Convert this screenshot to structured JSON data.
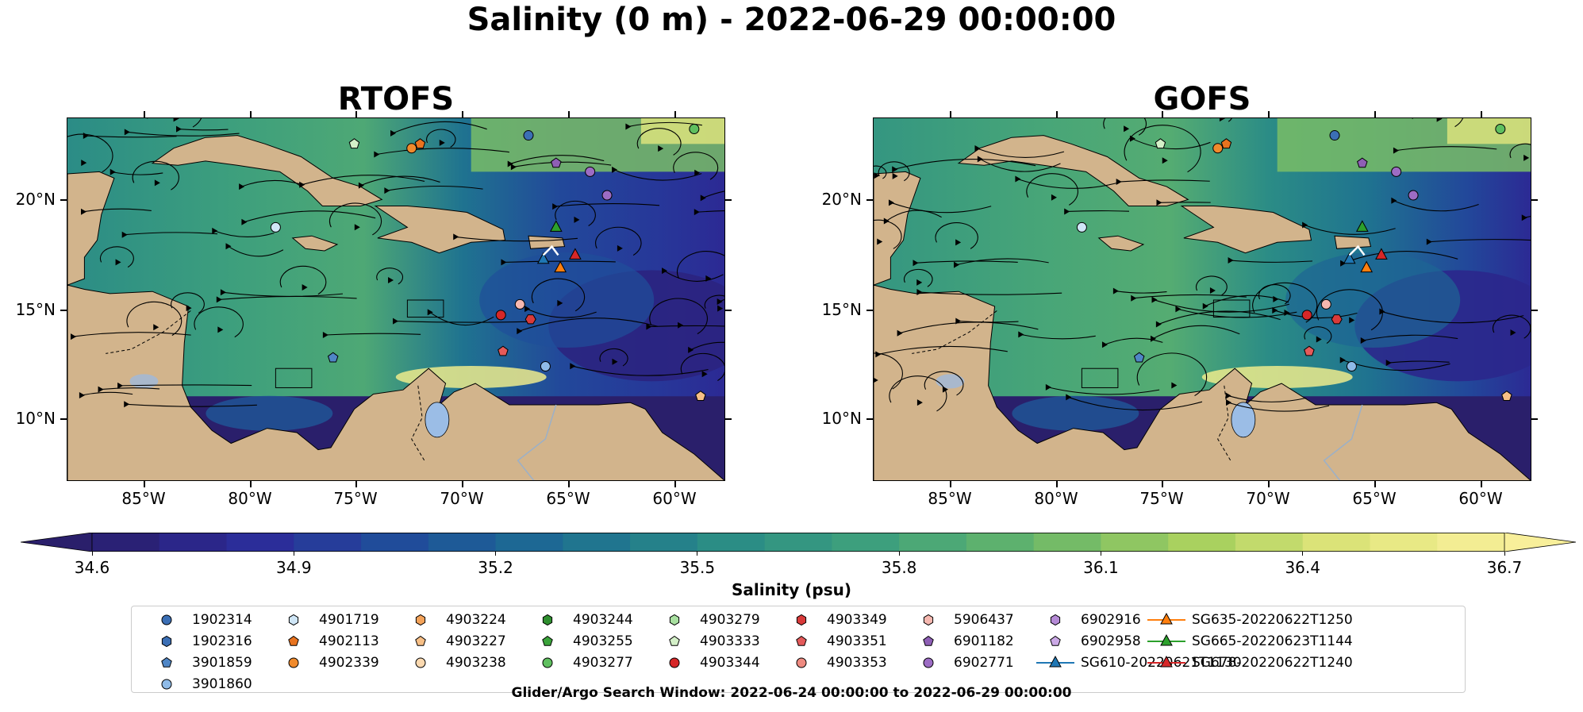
{
  "figure": {
    "title": "Salinity (0 m) - 2022-06-29 00:00:00",
    "panels": [
      {
        "title": "RTOFS"
      },
      {
        "title": "GOFS"
      }
    ],
    "lat_labels": [
      "20°N",
      "15°N",
      "10°N"
    ],
    "lon_labels": [
      "85°W",
      "80°W",
      "75°W",
      "70°W",
      "65°W",
      "60°W"
    ],
    "colors": {
      "land": "#d2b48c",
      "ocean_low": "#2a1f6b",
      "ocean_high": "#f8ef9a",
      "lake": "#9bbde6"
    }
  },
  "colorbar": {
    "label": "Salinity (psu)",
    "ticks": [
      "34.6",
      "34.9",
      "35.2",
      "35.5",
      "35.8",
      "36.1",
      "36.4",
      "36.7"
    ],
    "min": 34.6,
    "max": 36.7
  },
  "legend": {
    "caption": "Glider/Argo Search Window: 2022-06-24 00:00:00 to 2022-06-29 00:00:00",
    "items": [
      {
        "label": "1902314",
        "marker": "circle",
        "color": "#3b6fb5"
      },
      {
        "label": "1902316",
        "marker": "hexagon",
        "color": "#3b6fb5"
      },
      {
        "label": "3901859",
        "marker": "pentagon",
        "color": "#4f86c6"
      },
      {
        "label": "3901860",
        "marker": "circle",
        "color": "#8fbbe8"
      },
      {
        "label": "4901719",
        "marker": "hexagon",
        "color": "#cfe6f7"
      },
      {
        "label": "4902113",
        "marker": "pentagon",
        "color": "#e8731f"
      },
      {
        "label": "4902339",
        "marker": "circle",
        "color": "#f08a2c"
      },
      {
        "label": "4903224",
        "marker": "hexagon",
        "color": "#f4a35a"
      },
      {
        "label": "4903227",
        "marker": "pentagon",
        "color": "#f7bf86"
      },
      {
        "label": "4903238",
        "marker": "circle",
        "color": "#fbd9b0"
      },
      {
        "label": "4903244",
        "marker": "hexagon",
        "color": "#2f8f2f"
      },
      {
        "label": "4903255",
        "marker": "pentagon",
        "color": "#3aa33a"
      },
      {
        "label": "4903277",
        "marker": "circle",
        "color": "#5fbf5f"
      },
      {
        "label": "4903279",
        "marker": "hexagon",
        "color": "#a8e0a0"
      },
      {
        "label": "4903333",
        "marker": "pentagon",
        "color": "#d4f0c8"
      },
      {
        "label": "4903344",
        "marker": "circle",
        "color": "#d62728"
      },
      {
        "label": "4903349",
        "marker": "hexagon",
        "color": "#d93a3a"
      },
      {
        "label": "4903351",
        "marker": "pentagon",
        "color": "#e45a5a"
      },
      {
        "label": "4903353",
        "marker": "circle",
        "color": "#ee8a80"
      },
      {
        "label": "5906437",
        "marker": "hexagon",
        "color": "#f6b8b0"
      },
      {
        "label": "6901182",
        "marker": "pentagon",
        "color": "#8e5fb5"
      },
      {
        "label": "6902771",
        "marker": "circle",
        "color": "#9c6cc4"
      },
      {
        "label": "6902916",
        "marker": "hexagon",
        "color": "#b58ad6"
      },
      {
        "label": "6902958",
        "marker": "pentagon",
        "color": "#cba9e6"
      },
      {
        "label": "SG610-20220621T1130",
        "marker": "triangle-line",
        "color": "#1f77b4"
      },
      {
        "label": "SG635-20220622T1250",
        "marker": "triangle-line",
        "color": "#ff7f0e"
      },
      {
        "label": "SG665-20220623T1144",
        "marker": "triangle-line",
        "color": "#2ca02c"
      },
      {
        "label": "SG678-20220622T1240",
        "marker": "triangle-line",
        "color": "#d62728"
      }
    ]
  }
}
